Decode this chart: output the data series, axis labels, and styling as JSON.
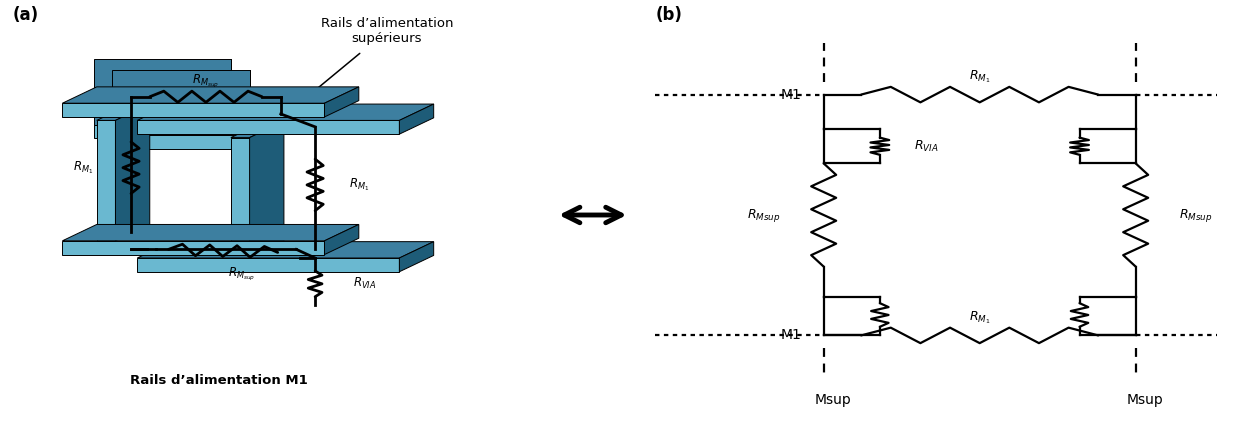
{
  "fig_width": 12.48,
  "fig_height": 4.3,
  "dpi": 100,
  "label_a": "(a)",
  "label_b": "(b)",
  "title_sup": "Rails d’alimentation\nsupérieurs",
  "title_m1": "Rails d’alimentation M1",
  "text_M1_top": "M1",
  "text_M1_bot": "M1",
  "text_Msup_left": "Msup",
  "text_Msup_right": "Msup",
  "rail_top": "#3d7fa0",
  "rail_side": "#1e5c78",
  "rail_front": "#5aaac8",
  "rail_light": "#6ab8d0",
  "wire_color": "black",
  "lw": 1.5,
  "arrow_color": "black"
}
